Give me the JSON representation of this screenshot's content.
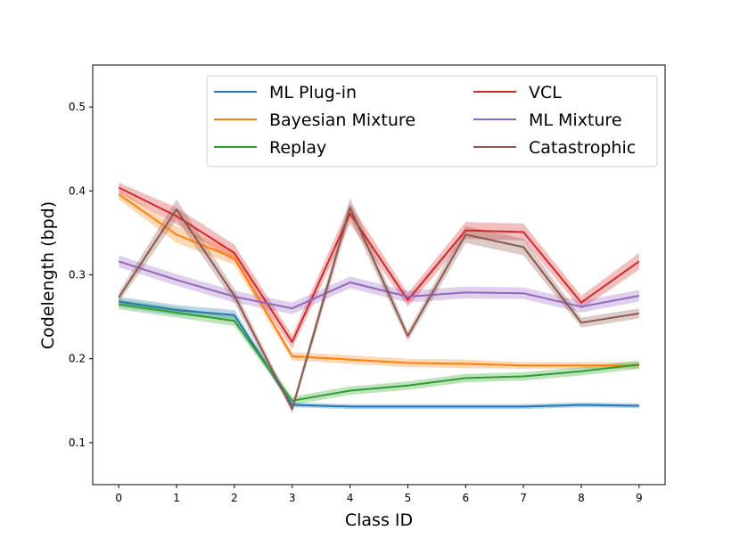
{
  "chart_data": {
    "type": "line",
    "title": "",
    "xlabel": "Class ID",
    "ylabel": "Codelength (bpd)",
    "x": [
      0,
      1,
      2,
      3,
      4,
      5,
      6,
      7,
      8,
      9
    ],
    "x_ticks": [
      "0",
      "1",
      "2",
      "3",
      "4",
      "5",
      "6",
      "7",
      "8",
      "9"
    ],
    "y_ticks": [
      "0.1",
      "0.2",
      "0.3",
      "0.4",
      "0.5"
    ],
    "xlim": [
      -0.45,
      9.45
    ],
    "ylim": [
      0.05,
      0.55
    ],
    "legend_location": "top",
    "series": [
      {
        "name": "ML Plug-in",
        "color": "#1f77b4",
        "values": [
          0.268,
          0.258,
          0.252,
          0.145,
          0.143,
          0.143,
          0.143,
          0.143,
          0.145,
          0.144
        ],
        "band": [
          0.006,
          0.006,
          0.006,
          0.003,
          0.003,
          0.003,
          0.003,
          0.003,
          0.003,
          0.003
        ]
      },
      {
        "name": "Bayesian Mixture",
        "color": "#ff7f0e",
        "values": [
          0.396,
          0.348,
          0.32,
          0.203,
          0.199,
          0.195,
          0.194,
          0.192,
          0.192,
          0.192
        ],
        "band": [
          0.006,
          0.01,
          0.008,
          0.005,
          0.005,
          0.005,
          0.005,
          0.004,
          0.004,
          0.004
        ]
      },
      {
        "name": "Replay",
        "color": "#2ca02c",
        "values": [
          0.265,
          0.255,
          0.245,
          0.15,
          0.162,
          0.168,
          0.177,
          0.179,
          0.185,
          0.193
        ],
        "band": [
          0.006,
          0.006,
          0.006,
          0.005,
          0.005,
          0.005,
          0.005,
          0.005,
          0.005,
          0.005
        ]
      },
      {
        "name": "VCL",
        "color": "#d62728",
        "values": [
          0.404,
          0.37,
          0.326,
          0.22,
          0.373,
          0.27,
          0.353,
          0.351,
          0.267,
          0.316
        ],
        "band": [
          0.006,
          0.01,
          0.01,
          0.008,
          0.012,
          0.008,
          0.01,
          0.01,
          0.008,
          0.01
        ]
      },
      {
        "name": "ML Mixture",
        "color": "#9467bd",
        "values": [
          0.316,
          0.294,
          0.274,
          0.26,
          0.291,
          0.274,
          0.279,
          0.278,
          0.262,
          0.275
        ],
        "band": [
          0.007,
          0.007,
          0.007,
          0.007,
          0.007,
          0.007,
          0.007,
          0.007,
          0.007,
          0.007
        ]
      },
      {
        "name": "Catastrophic",
        "color": "#8c564b",
        "values": [
          0.273,
          0.378,
          0.275,
          0.14,
          0.38,
          0.227,
          0.348,
          0.333,
          0.243,
          0.254
        ],
        "band": [
          0.006,
          0.012,
          0.008,
          0.005,
          0.012,
          0.006,
          0.01,
          0.01,
          0.006,
          0.006
        ]
      }
    ]
  }
}
